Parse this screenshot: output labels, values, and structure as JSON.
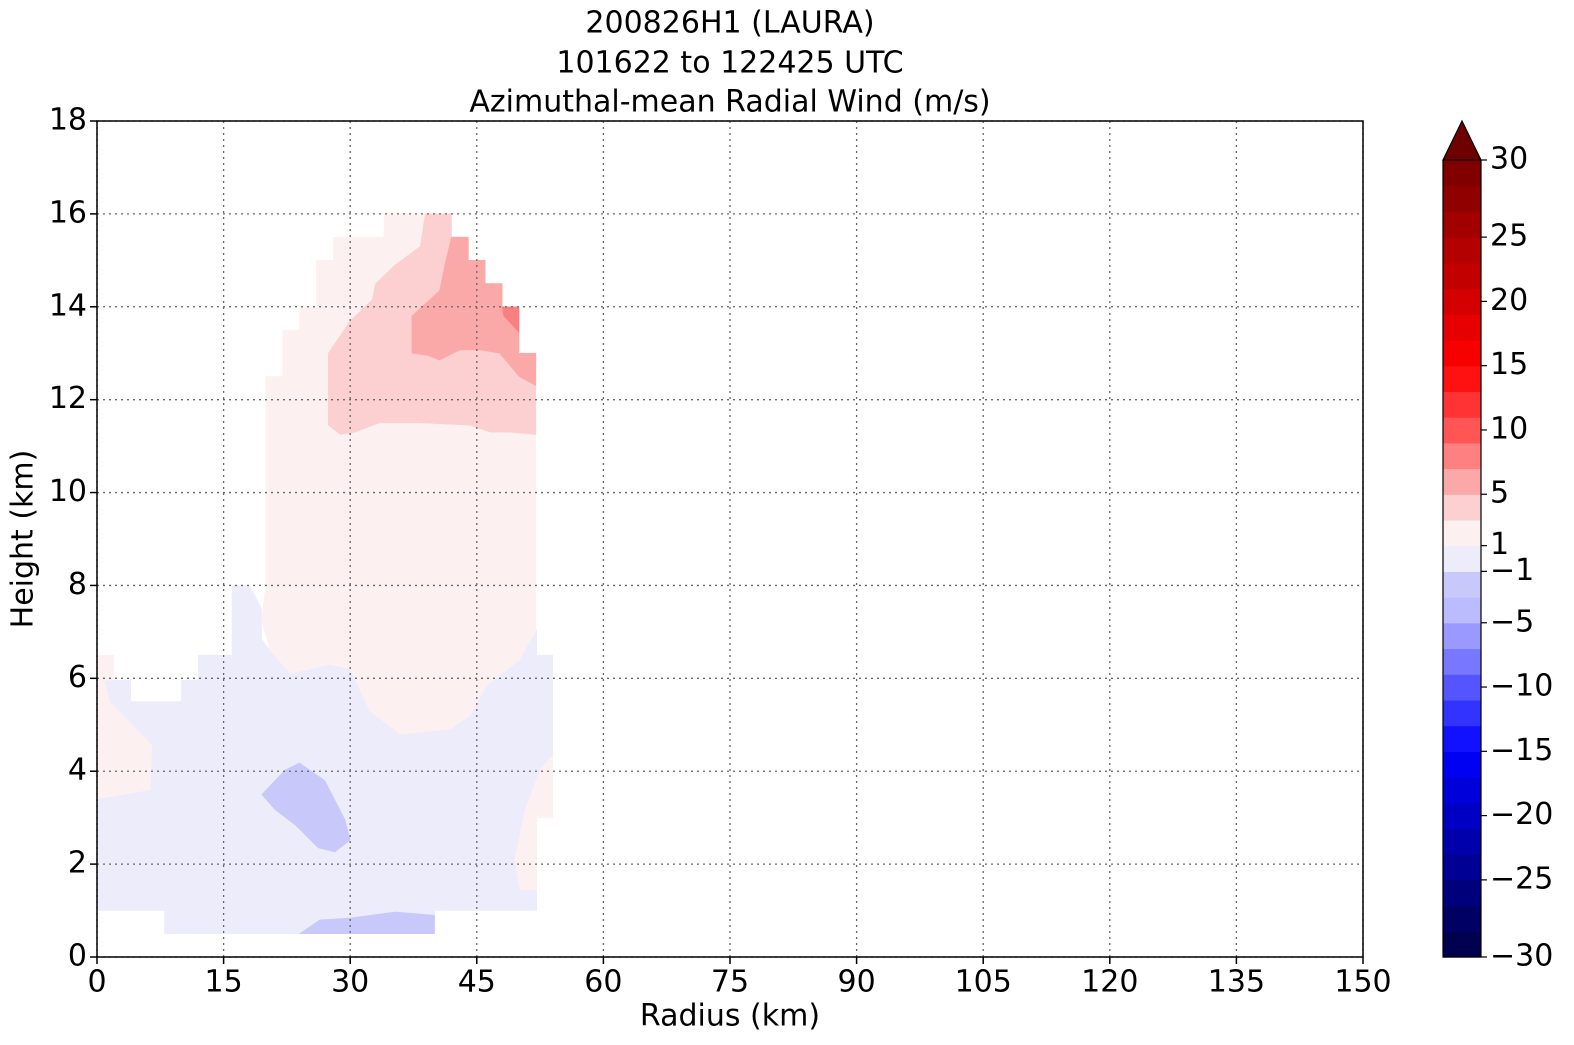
{
  "chart_data": {
    "type": "contourf",
    "title_lines": [
      "200826H1 (LAURA)",
      "101622 to 122425 UTC",
      "Azimuthal-mean Radial Wind (m/s)"
    ],
    "xlabel": "Radius (km)",
    "ylabel": "Height (km)",
    "xlim": [
      0,
      150
    ],
    "xticks": [
      0,
      15,
      30,
      45,
      60,
      75,
      90,
      105,
      120,
      135,
      150
    ],
    "ylim": [
      0,
      18
    ],
    "yticks": [
      0,
      2,
      4,
      6,
      8,
      10,
      12,
      14,
      16,
      18
    ],
    "grid": true,
    "regions": [
      {
        "color": "#ececfb",
        "x": [
          0,
          0,
          6.3,
          6.5,
          1.5,
          0.9,
          4,
          4,
          10,
          10,
          12,
          12,
          16,
          16,
          18.1,
          19.5,
          19.5,
          20.5,
          22.9,
          27.6,
          30,
          32.3,
          35.9,
          41.8,
          44.2,
          46.2,
          50.1,
          52.1,
          52.1,
          54,
          54,
          52.5,
          50.7,
          49.5,
          50.1,
          52.1,
          52.1,
          40,
          40,
          8,
          8,
          0
        ],
        "y": [
          1,
          3.4,
          3.6,
          4.57,
          5.5,
          5.96,
          5.96,
          5.5,
          5.5,
          5.96,
          5.96,
          6.5,
          6.5,
          8,
          8,
          7.5,
          6.85,
          6.6,
          6.1,
          6.3,
          6.2,
          5.3,
          4.8,
          4.9,
          5.2,
          5.85,
          6.4,
          7.05,
          6.5,
          6.5,
          4.35,
          4.03,
          3.17,
          2.09,
          1.44,
          1.44,
          1,
          1,
          0.5,
          0.5,
          1,
          1
        ]
      },
      {
        "color": "#fdf0f0",
        "x": [
          0,
          2,
          2,
          0.9,
          1.5,
          6.5,
          6.3,
          0
        ],
        "y": [
          6.5,
          6.5,
          5.96,
          5.96,
          5.5,
          4.57,
          3.6,
          3.4
        ]
      },
      {
        "color": "#fdf0f0",
        "x": [
          54,
          52.5,
          50.7,
          49.5,
          50.1,
          52.1,
          52.1,
          54
        ],
        "y": [
          4.35,
          4.03,
          3.17,
          2.09,
          1.44,
          1.44,
          3,
          3
        ]
      },
      {
        "color": "#fdf0f0",
        "x": [
          20,
          20,
          22,
          22,
          24,
          24,
          26,
          26,
          28,
          28,
          34,
          34,
          42,
          42,
          44,
          44,
          46,
          46,
          48,
          48,
          50,
          50,
          52,
          52,
          50.1,
          46.2,
          44.2,
          41.8,
          35.9,
          32.3,
          30,
          27.6,
          22.9,
          20.5,
          19.5
        ],
        "y": [
          8,
          12.5,
          12.5,
          13.5,
          13.5,
          14,
          14,
          15,
          15,
          15.5,
          15.5,
          16,
          16,
          15.5,
          15.5,
          15,
          15,
          14.5,
          14.5,
          14,
          14,
          13,
          13,
          7.05,
          6.4,
          5.85,
          5.2,
          4.9,
          4.8,
          5.3,
          6.2,
          6.3,
          6.1,
          6.6,
          7.25
        ]
      },
      {
        "color": "#fcd0d0",
        "x": [
          27.4,
          27.4,
          30,
          32.6,
          33,
          35.3,
          38.3,
          38.9,
          42,
          42,
          44,
          44,
          46,
          46,
          48,
          48,
          50,
          50,
          52,
          52,
          48.9,
          46.6,
          44.2,
          38.3,
          33.5,
          30.6,
          28.8
        ],
        "y": [
          11.45,
          13,
          13.7,
          14.15,
          14.5,
          14.9,
          15.3,
          16,
          16,
          15.5,
          15.5,
          15,
          15,
          14.5,
          14.5,
          14,
          14,
          13,
          13,
          11.25,
          11.3,
          11.3,
          11.45,
          11.5,
          11.5,
          11.3,
          11.25
        ]
      },
      {
        "color": "#fba8a8",
        "x": [
          37.3,
          37.3,
          40.6,
          41.2,
          42,
          44,
          44,
          46,
          46,
          48,
          48,
          50,
          50,
          52,
          52,
          50,
          47.7,
          45.4,
          43,
          40.6,
          39.2
        ],
        "y": [
          13,
          13.8,
          14.35,
          14.9,
          15.5,
          15.5,
          15,
          15,
          14.5,
          14.5,
          14,
          14,
          13,
          13,
          12.3,
          12.5,
          13,
          13.07,
          13.07,
          12.85,
          12.95
        ]
      },
      {
        "color": "#f88080",
        "x": [
          48,
          50,
          50,
          48.2
        ],
        "y": [
          14,
          14,
          13.45,
          13.8
        ]
      },
      {
        "color": "#c8c8fa",
        "x": [
          19.5,
          22.3,
          24,
          27,
          29.4,
          30,
          28.2,
          26.2,
          23.5,
          21.1
        ],
        "y": [
          3.5,
          4.03,
          4.18,
          3.8,
          2.95,
          2.52,
          2.26,
          2.35,
          2.84,
          3.17
        ]
      },
      {
        "color": "#c8c8fa",
        "x": [
          24,
          26.4,
          30,
          35.3,
          40,
          40
        ],
        "y": [
          0.5,
          0.8,
          0.84,
          0.97,
          0.9,
          0.5
        ]
      }
    ],
    "colorbar": {
      "levels": [
        -30,
        -29,
        -27,
        -25,
        -23,
        -21,
        -19,
        -17,
        -15,
        -13,
        -11,
        -9,
        -7,
        -5,
        -3,
        -1,
        1,
        3,
        5,
        7,
        9,
        11,
        13,
        15,
        17,
        19,
        21,
        23,
        25,
        27,
        29,
        30
      ],
      "colors": [
        "#00004f",
        "#000064",
        "#00007c",
        "#000094",
        "#0000ac",
        "#0000c4",
        "#0000db",
        "#0000f3",
        "#1111ff",
        "#3333ff",
        "#5555ff",
        "#7777ff",
        "#9999ff",
        "#bbbbff",
        "#c8c8fa",
        "#ececfb",
        "#fdf0f0",
        "#fcd0d0",
        "#fba8a8",
        "#ff8080",
        "#ff5555",
        "#ff3333",
        "#ff1111",
        "#f70000",
        "#e60000",
        "#d40000",
        "#c30000",
        "#b30000",
        "#a20000",
        "#910000",
        "#800000"
      ],
      "extend_color": "#6e0000",
      "ticks": [
        {
          "value": -30,
          "label": "−30"
        },
        {
          "value": -25,
          "label": "−25"
        },
        {
          "value": -20,
          "label": "−20"
        },
        {
          "value": -15,
          "label": "−15"
        },
        {
          "value": -10,
          "label": "−10"
        },
        {
          "value": -5,
          "label": "−5"
        },
        {
          "value": -1,
          "label": "−1"
        },
        1,
        5,
        10,
        15,
        20,
        25,
        30
      ]
    }
  }
}
